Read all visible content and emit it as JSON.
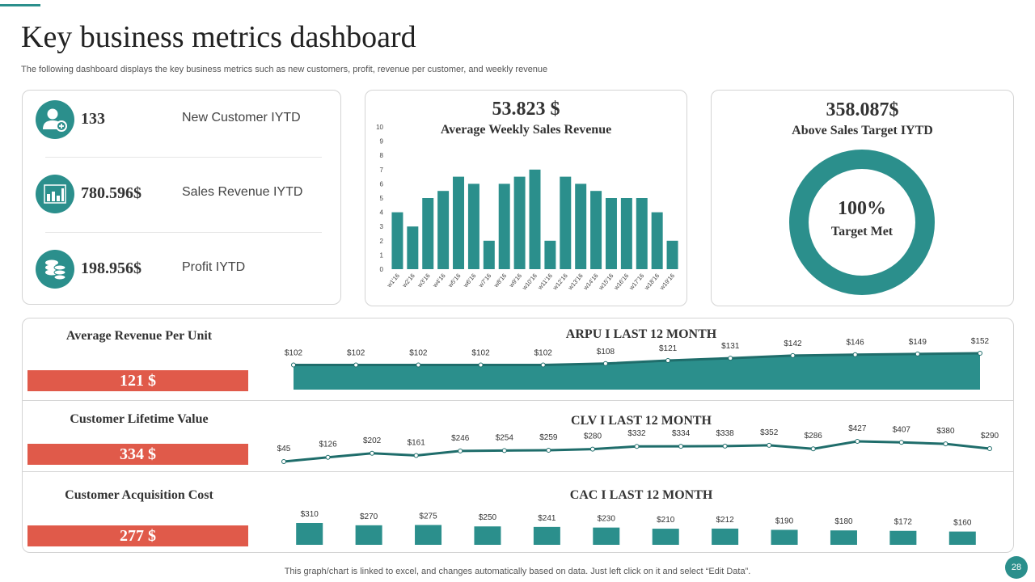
{
  "header": {
    "title": "Key business metrics dashboard",
    "subtitle": "The following dashboard displays the key business metrics such as new customers, profit, revenue per customer, and weekly revenue"
  },
  "kpis": [
    {
      "value": "133",
      "label": "New Customer IYTD",
      "icon": "add-user-icon"
    },
    {
      "value": "780.596$",
      "label": "Sales Revenue IYTD",
      "icon": "bar-chart-icon"
    },
    {
      "value": "198.956$",
      "label": "Profit IYTD",
      "icon": "coins-stack-icon"
    }
  ],
  "weekly": {
    "value": "53.823 $",
    "heading": "Average Weekly Sales Revenue"
  },
  "target": {
    "value": "358.087$",
    "heading": "Above Sales Target IYTD",
    "percent_text": "100%",
    "percent_label": "Target Met",
    "fraction": 1.0
  },
  "metrics": {
    "arpu": {
      "title": "Average Revenue Per Unit",
      "value": "121 $",
      "chart_title": "ARPU I LAST 12 MONTH"
    },
    "clv": {
      "title": "Customer Lifetime Value",
      "value": "334 $",
      "chart_title": "CLV I LAST 12 MONTH"
    },
    "cac": {
      "title": "Customer Acquisition Cost",
      "value": "277 $",
      "chart_title": "CAC I LAST 12 MONTH"
    }
  },
  "colors": {
    "teal": "#2b8f8c",
    "teal_dark": "#1f6d6b",
    "red": "#e05a4a"
  },
  "chart_data": [
    {
      "type": "bar",
      "title": "Average Weekly Sales Revenue",
      "categories": [
        "w1'16",
        "w2'16",
        "w3'16",
        "w4'16",
        "w5'16",
        "w6'16",
        "w7'16",
        "w8'16",
        "w9'16",
        "w10'16",
        "w11'16",
        "w12'16",
        "w13'16",
        "w14'16",
        "w15'16",
        "w16'16",
        "w17'16",
        "w18'16",
        "w19'16"
      ],
      "values": [
        4,
        3,
        5,
        5.5,
        6.5,
        6,
        2,
        6,
        6.5,
        7,
        2,
        6.5,
        6,
        5.5,
        5,
        5,
        5,
        4,
        2
      ],
      "ylim": [
        0,
        10
      ],
      "yticks": [
        0,
        1,
        2,
        3,
        4,
        5,
        6,
        7,
        8,
        9,
        10
      ],
      "grid": false
    },
    {
      "type": "pie",
      "title": "Above Sales Target IYTD",
      "values": [
        100
      ],
      "categories": [
        "Target Met"
      ]
    },
    {
      "type": "area",
      "title": "ARPU I LAST 12 MONTH",
      "values": [
        102,
        102,
        102,
        102,
        102,
        108,
        121,
        131,
        142,
        146,
        149,
        152
      ],
      "labels": [
        "$102",
        "$102",
        "$102",
        "$102",
        "$102",
        "$108",
        "$121",
        "$131",
        "$142",
        "$146",
        "$149",
        "$152"
      ]
    },
    {
      "type": "line",
      "title": "CLV I LAST 12 MONTH",
      "values": [
        45,
        126,
        202,
        161,
        246,
        254,
        259,
        280,
        332,
        334,
        338,
        352,
        286,
        427,
        407,
        380,
        290
      ],
      "labels": [
        "$45",
        "$126",
        "$202",
        "$161",
        "$246",
        "$254",
        "$259",
        "$280",
        "$332",
        "$334",
        "$338",
        "$352",
        "$286",
        "$427",
        "$407",
        "$380",
        "$290"
      ]
    },
    {
      "type": "bar",
      "title": "CAC I LAST 12 MONTH",
      "values": [
        310,
        270,
        275,
        250,
        241,
        230,
        210,
        212,
        190,
        180,
        172,
        160
      ],
      "labels": [
        "$310",
        "$270",
        "$275",
        "$250",
        "$241",
        "$230",
        "$210",
        "$212",
        "$190",
        "$180",
        "$172",
        "$160"
      ]
    }
  ],
  "footer": {
    "note": "This graph/chart is linked to excel,  and changes automatically based on data. Just left click on it and select “Edit Data”.",
    "page_number": "28"
  }
}
